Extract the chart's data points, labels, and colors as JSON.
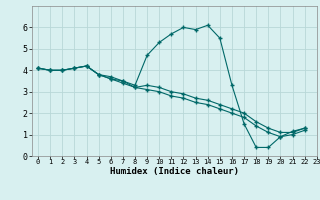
{
  "xlabel": "Humidex (Indice chaleur)",
  "ylabel": "",
  "bg_color": "#d8f0f0",
  "grid_color": "#b8d8d8",
  "line_color": "#006868",
  "xlim": [
    -0.5,
    23
  ],
  "ylim": [
    0,
    7
  ],
  "xticks": [
    0,
    1,
    2,
    3,
    4,
    5,
    6,
    7,
    8,
    9,
    10,
    11,
    12,
    13,
    14,
    15,
    16,
    17,
    18,
    19,
    20,
    21,
    22,
    23
  ],
  "yticks": [
    0,
    1,
    2,
    3,
    4,
    5,
    6
  ],
  "lines": [
    {
      "x": [
        0,
        1,
        2,
        3,
        4,
        5,
        6,
        7,
        8,
        9,
        10,
        11,
        12,
        13,
        14,
        15,
        16,
        17,
        18,
        19,
        20,
        21,
        22
      ],
      "y": [
        4.1,
        4.0,
        4.0,
        4.1,
        4.2,
        3.8,
        3.7,
        3.5,
        3.3,
        4.7,
        5.3,
        5.7,
        6.0,
        5.9,
        6.1,
        5.5,
        3.3,
        1.5,
        0.4,
        0.4,
        0.9,
        1.15,
        1.3
      ]
    },
    {
      "x": [
        0,
        1,
        2,
        3,
        4,
        5,
        6,
        7,
        8,
        9,
        10,
        11,
        12,
        13,
        14,
        15,
        16,
        17,
        18,
        19,
        20,
        21,
        22
      ],
      "y": [
        4.1,
        4.0,
        4.0,
        4.1,
        4.2,
        3.8,
        3.6,
        3.5,
        3.2,
        3.3,
        3.2,
        3.0,
        2.9,
        2.7,
        2.6,
        2.4,
        2.2,
        2.0,
        1.6,
        1.3,
        1.1,
        1.1,
        1.3
      ]
    },
    {
      "x": [
        0,
        1,
        2,
        3,
        4,
        5,
        6,
        7,
        8,
        9,
        10,
        11,
        12,
        13,
        14,
        15,
        16,
        17,
        18,
        19,
        20,
        21,
        22
      ],
      "y": [
        4.1,
        4.0,
        4.0,
        4.1,
        4.2,
        3.8,
        3.6,
        3.4,
        3.2,
        3.1,
        3.0,
        2.8,
        2.7,
        2.5,
        2.4,
        2.2,
        2.0,
        1.8,
        1.4,
        1.1,
        0.9,
        1.0,
        1.2
      ]
    }
  ]
}
